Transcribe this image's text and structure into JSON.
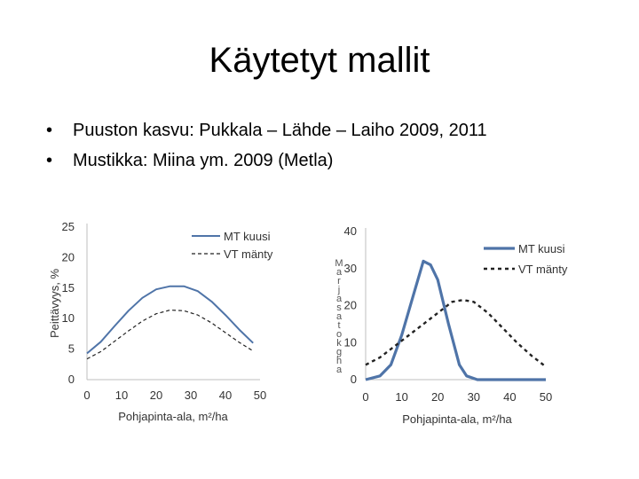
{
  "slide": {
    "title": "Käytetyt mallit",
    "bullets": [
      "Puuston kasvu: Pukkala – Lähde – Laiho 2009, 2011",
      "Mustikka: Miina ym. 2009 (Metla)"
    ],
    "bullet_symbol": "•"
  },
  "chart_data": [
    {
      "type": "line",
      "title": "",
      "xlabel": "Pohjapinta-ala, m²/ha",
      "ylabel": "Peittävyys, %",
      "xlim": [
        0,
        50
      ],
      "ylim": [
        0,
        25
      ],
      "x_ticks": [
        "0",
        "10",
        "20",
        "30",
        "40",
        "50"
      ],
      "y_ticks": [
        "0",
        "5",
        "10",
        "15",
        "20",
        "25"
      ],
      "grid": false,
      "legend": "top-right",
      "series": [
        {
          "name": "MT kuusi",
          "color": "#4f74a8",
          "style": "solid",
          "x": [
            0,
            4,
            8,
            12,
            16,
            20,
            24,
            28,
            32,
            36,
            40,
            44,
            48
          ],
          "y": [
            4.3,
            6.2,
            8.8,
            11.3,
            13.4,
            14.8,
            15.3,
            15.3,
            14.5,
            12.8,
            10.6,
            8.2,
            6.0
          ]
        },
        {
          "name": "VT mänty",
          "color": "#222222",
          "style": "dashed",
          "x": [
            0,
            4,
            8,
            12,
            16,
            20,
            24,
            28,
            32,
            36,
            40,
            44,
            48
          ],
          "y": [
            3.4,
            4.6,
            6.3,
            8.0,
            9.6,
            10.8,
            11.4,
            11.3,
            10.6,
            9.3,
            7.7,
            6.1,
            4.7
          ]
        }
      ]
    },
    {
      "type": "line",
      "title": "",
      "xlabel": "Pohjapinta-ala, m²/ha",
      "ylabel": "Marjasato, kg/ha",
      "ylabel_visible": "M a r j a s a t o, k g / h a",
      "xlim": [
        0,
        50
      ],
      "ylim": [
        0,
        40
      ],
      "x_ticks": [
        "0",
        "10",
        "20",
        "30",
        "40",
        "50"
      ],
      "y_ticks": [
        "0",
        "10",
        "20",
        "30",
        "40"
      ],
      "grid": false,
      "legend": "right",
      "series": [
        {
          "name": "MT kuusi",
          "color": "#4f74a8",
          "style": "solid",
          "x": [
            0,
            4,
            7,
            10,
            13,
            16,
            18,
            20,
            23,
            26,
            28,
            31,
            34,
            38,
            42,
            46,
            50
          ],
          "y": [
            0,
            1,
            4,
            12,
            22,
            32,
            31,
            27,
            15,
            4,
            1,
            0,
            0,
            0,
            0,
            0,
            0
          ]
        },
        {
          "name": "VT mänty",
          "color": "#222222",
          "style": "dashed",
          "x": [
            0,
            4,
            8,
            12,
            16,
            20,
            24,
            27,
            30,
            34,
            38,
            42,
            46,
            50
          ],
          "y": [
            4,
            6,
            9,
            12,
            15,
            18,
            21,
            21.5,
            21,
            18,
            14,
            10,
            6.5,
            3.5
          ]
        }
      ]
    }
  ]
}
